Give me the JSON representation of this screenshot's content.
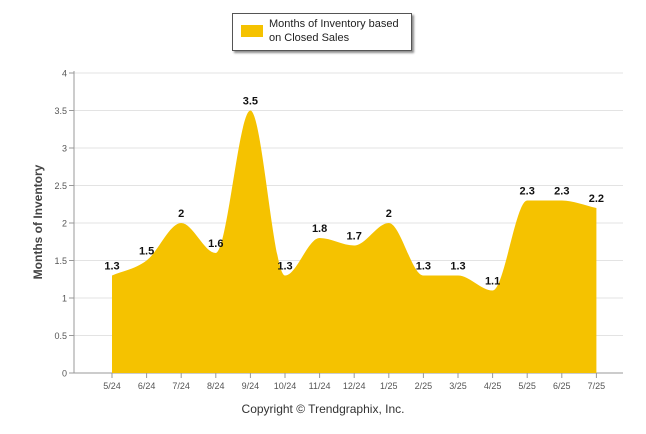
{
  "chart_data": {
    "type": "area",
    "categories": [
      "5/24",
      "6/24",
      "7/24",
      "8/24",
      "9/24",
      "10/24",
      "11/24",
      "12/24",
      "1/25",
      "2/25",
      "3/25",
      "4/25",
      "5/25",
      "6/25",
      "7/25"
    ],
    "series": [
      {
        "name": "Months of Inventory based on Closed Sales",
        "values": [
          1.3,
          1.5,
          2,
          1.6,
          3.5,
          1.3,
          1.8,
          1.7,
          2,
          1.3,
          1.3,
          1.1,
          2.3,
          2.3,
          2.2
        ],
        "labels": [
          "1.3",
          "1.5",
          "2",
          "1.6",
          "3.5",
          "1.3",
          "1.8",
          "1.7",
          "2",
          "1.3",
          "1.3",
          "1.1",
          "2.3",
          "2.3",
          "2.2"
        ],
        "color": "#F5C200"
      }
    ],
    "ylabel": "Months of Inventory",
    "xlabel": "",
    "ylim": [
      0,
      4
    ],
    "yticks": [
      "0",
      "0.5",
      "1",
      "1.5",
      "2",
      "2.5",
      "3",
      "3.5",
      "4"
    ],
    "grid": true,
    "legend_position": "top-center"
  },
  "legend": {
    "label": "Months of Inventory based on Closed Sales",
    "color": "#F5C200"
  },
  "footer": "Copyright © Trendgraphix, Inc."
}
